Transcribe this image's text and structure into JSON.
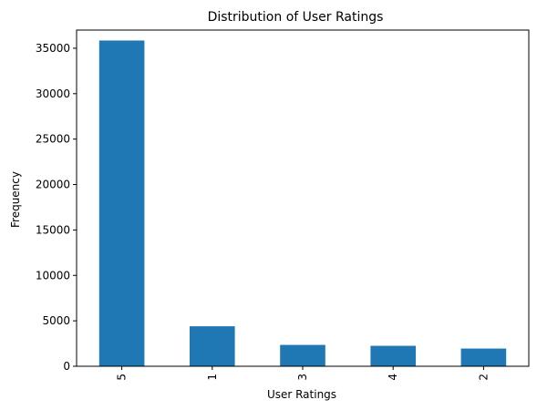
{
  "chart_data": {
    "type": "bar",
    "title": "Distribution of User Ratings",
    "xlabel": "User Ratings",
    "ylabel": "Frequency",
    "categories": [
      "5",
      "1",
      "3",
      "4",
      "2"
    ],
    "values": [
      35850,
      4400,
      2350,
      2250,
      1950
    ],
    "ylim": [
      0,
      37000
    ],
    "yticks": [
      0,
      5000,
      10000,
      15000,
      20000,
      25000,
      30000,
      35000
    ],
    "ytick_labels": [
      "0",
      "5000",
      "10000",
      "15000",
      "20000",
      "25000",
      "30000",
      "35000"
    ],
    "x_tick_rotation": "vertical",
    "grid": false,
    "legend": false,
    "bar_color": "#1f77b4"
  }
}
